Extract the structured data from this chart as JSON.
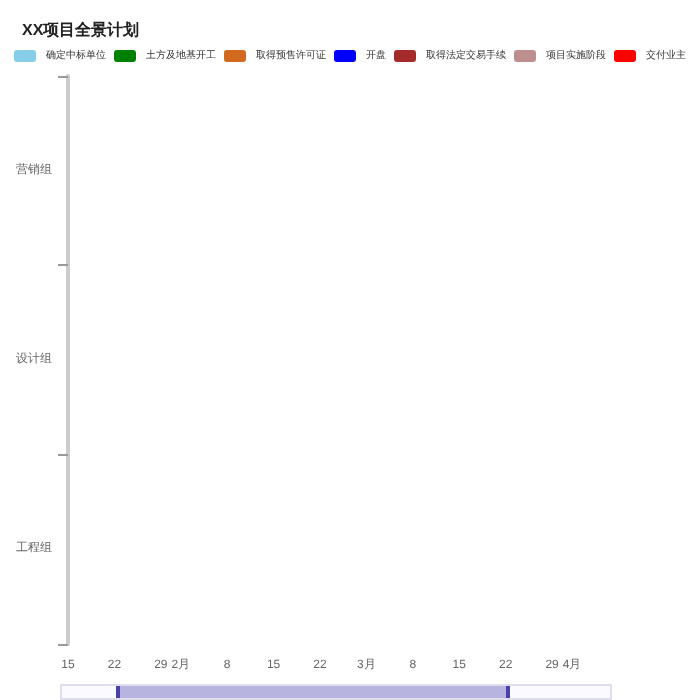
{
  "chart_data": {
    "type": "bar",
    "orientation": "horizontal",
    "title": "XX项目全景计划",
    "categories": [
      "营销组",
      "设计组",
      "工程组"
    ],
    "xlim": [
      "--01-15",
      "--04-01"
    ],
    "xticks": [
      {
        "value": "--01-15",
        "label": "15"
      },
      {
        "value": "--01-22",
        "label": "22"
      },
      {
        "value": "--01-29",
        "label": "29"
      },
      {
        "value": "--02-01",
        "label": "2月"
      },
      {
        "value": "--02-08",
        "label": "8"
      },
      {
        "value": "--02-15",
        "label": "15"
      },
      {
        "value": "--02-22",
        "label": "22"
      },
      {
        "value": "--03-01",
        "label": "3月"
      },
      {
        "value": "--03-08",
        "label": "8"
      },
      {
        "value": "--03-15",
        "label": "15"
      },
      {
        "value": "--03-22",
        "label": "22"
      },
      {
        "value": "--03-29",
        "label": "29"
      },
      {
        "value": "--04-01",
        "label": "4月"
      }
    ],
    "series": [
      {
        "name": "确定中标单位",
        "color": "#87ceeb",
        "values": [
          null,
          null,
          null
        ]
      },
      {
        "name": "土方及地基开工",
        "color": "#008000",
        "values": [
          null,
          null,
          null
        ]
      },
      {
        "name": "取得预售许可证",
        "color": "#d2691e",
        "values": [
          null,
          null,
          null
        ]
      },
      {
        "name": "开盘",
        "color": "#0000ff",
        "values": [
          null,
          null,
          null
        ]
      },
      {
        "name": "取得法定交易手续",
        "color": "#a52a2a",
        "values": [
          null,
          null,
          null
        ]
      },
      {
        "name": "项目实施阶段",
        "color": "#bc8f8f",
        "values": [
          null,
          null,
          null
        ]
      },
      {
        "name": "交付业主",
        "color": "#ff0000",
        "values": [
          null,
          null,
          null
        ]
      }
    ],
    "legend": "top",
    "grid": false
  }
}
